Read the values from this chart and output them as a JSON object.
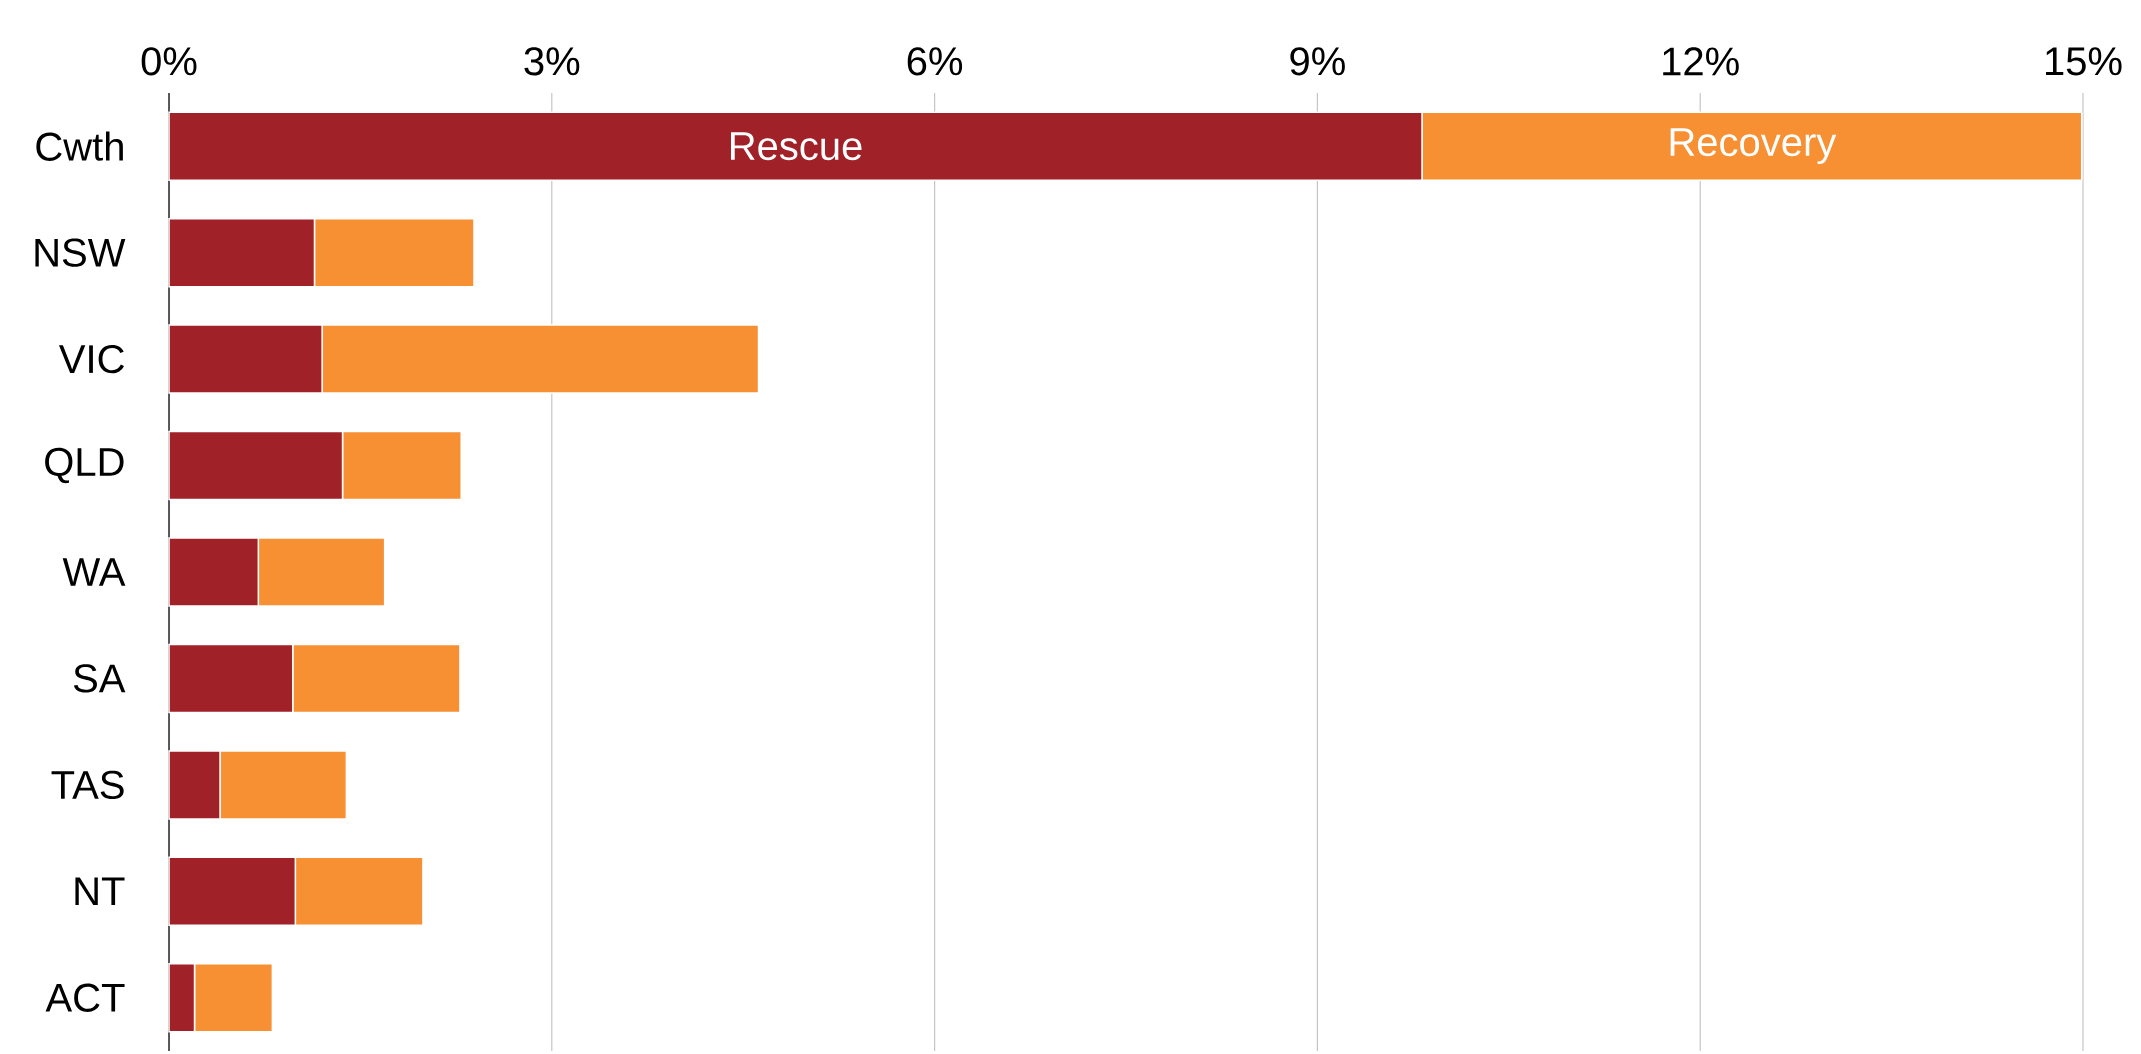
{
  "chart_data": {
    "type": "bar",
    "orientation": "horizontal",
    "stacked": true,
    "categories": [
      "Cwth",
      "NSW",
      "VIC",
      "QLD",
      "WA",
      "SA",
      "TAS",
      "NT",
      "ACT"
    ],
    "series": [
      {
        "name": "Rescue",
        "color": "#a02128",
        "values": [
          9.82,
          1.14,
          1.2,
          1.36,
          0.7,
          0.97,
          0.4,
          0.99,
          0.2
        ]
      },
      {
        "name": "Recovery",
        "color": "#f78f33",
        "values": [
          5.17,
          1.25,
          3.42,
          0.93,
          0.99,
          1.31,
          0.99,
          1.0,
          0.61
        ]
      }
    ],
    "xlim": [
      0,
      15
    ],
    "xticks": [
      {
        "value": 0,
        "label": "0%"
      },
      {
        "value": 3,
        "label": "3%"
      },
      {
        "value": 6,
        "label": "6%"
      },
      {
        "value": 9,
        "label": "9%"
      },
      {
        "value": 12,
        "label": "12%"
      },
      {
        "value": 15,
        "label": "15%"
      }
    ],
    "grid": "x",
    "legend": false
  }
}
